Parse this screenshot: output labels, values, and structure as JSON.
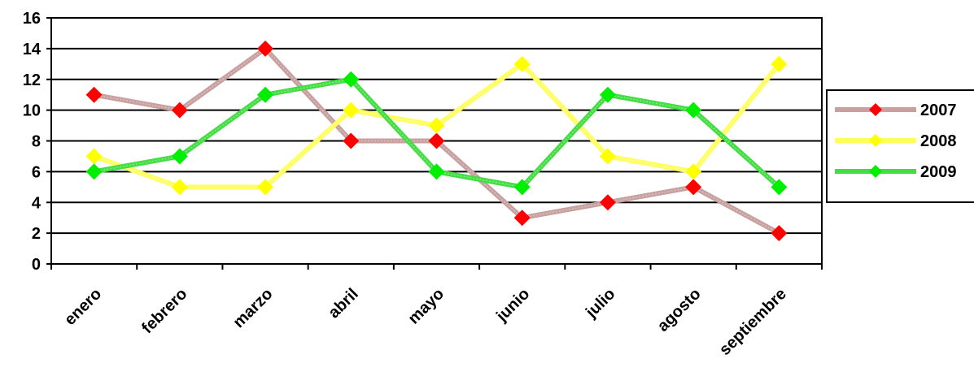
{
  "chart_data": {
    "type": "line",
    "categories": [
      "enero",
      "febrero",
      "marzo",
      "abril",
      "mayo",
      "junio",
      "julio",
      "agosto",
      "septiembre"
    ],
    "series": [
      {
        "name": "2007",
        "color": "#ff0000",
        "line_color": "#c8a0a0",
        "values": [
          11,
          10,
          14,
          8,
          8,
          3,
          4,
          5,
          2
        ]
      },
      {
        "name": "2008",
        "color": "#ffff00",
        "line_color": "#ffff60",
        "values": [
          7,
          5,
          5,
          10,
          9,
          13,
          7,
          6,
          13
        ]
      },
      {
        "name": "2009",
        "color": "#00ee00",
        "line_color": "#44dd44",
        "values": [
          6,
          7,
          11,
          12,
          6,
          5,
          11,
          10,
          5
        ]
      }
    ],
    "y_ticks": [
      "0",
      "2",
      "4",
      "6",
      "8",
      "10",
      "12",
      "14",
      "16"
    ],
    "ylim": [
      0,
      16
    ],
    "grid": true,
    "legend_position": "right",
    "title": "",
    "xlabel": "",
    "ylabel": ""
  }
}
